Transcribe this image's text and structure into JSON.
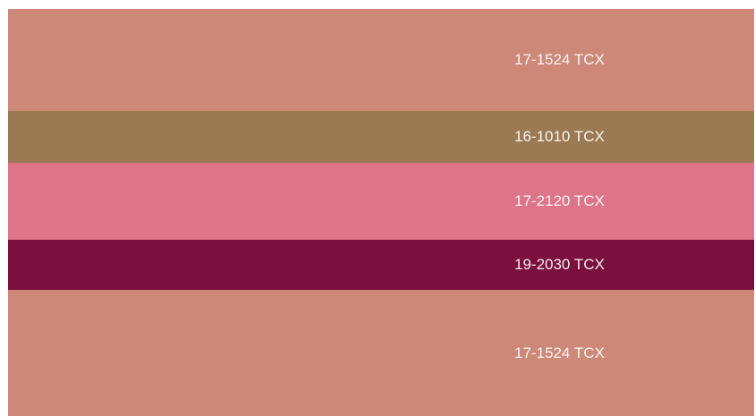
{
  "swatches": [
    {
      "label": "17-1524 TCX",
      "color": "#cd8878"
    },
    {
      "label": "16-1010 TCX",
      "color": "#9b7a53"
    },
    {
      "label": "17-2120 TCX",
      "color": "#de7489"
    },
    {
      "label": "19-2030 TCX",
      "color": "#7b103e"
    },
    {
      "label": "17-1524 TCX",
      "color": "#cd8878"
    }
  ]
}
